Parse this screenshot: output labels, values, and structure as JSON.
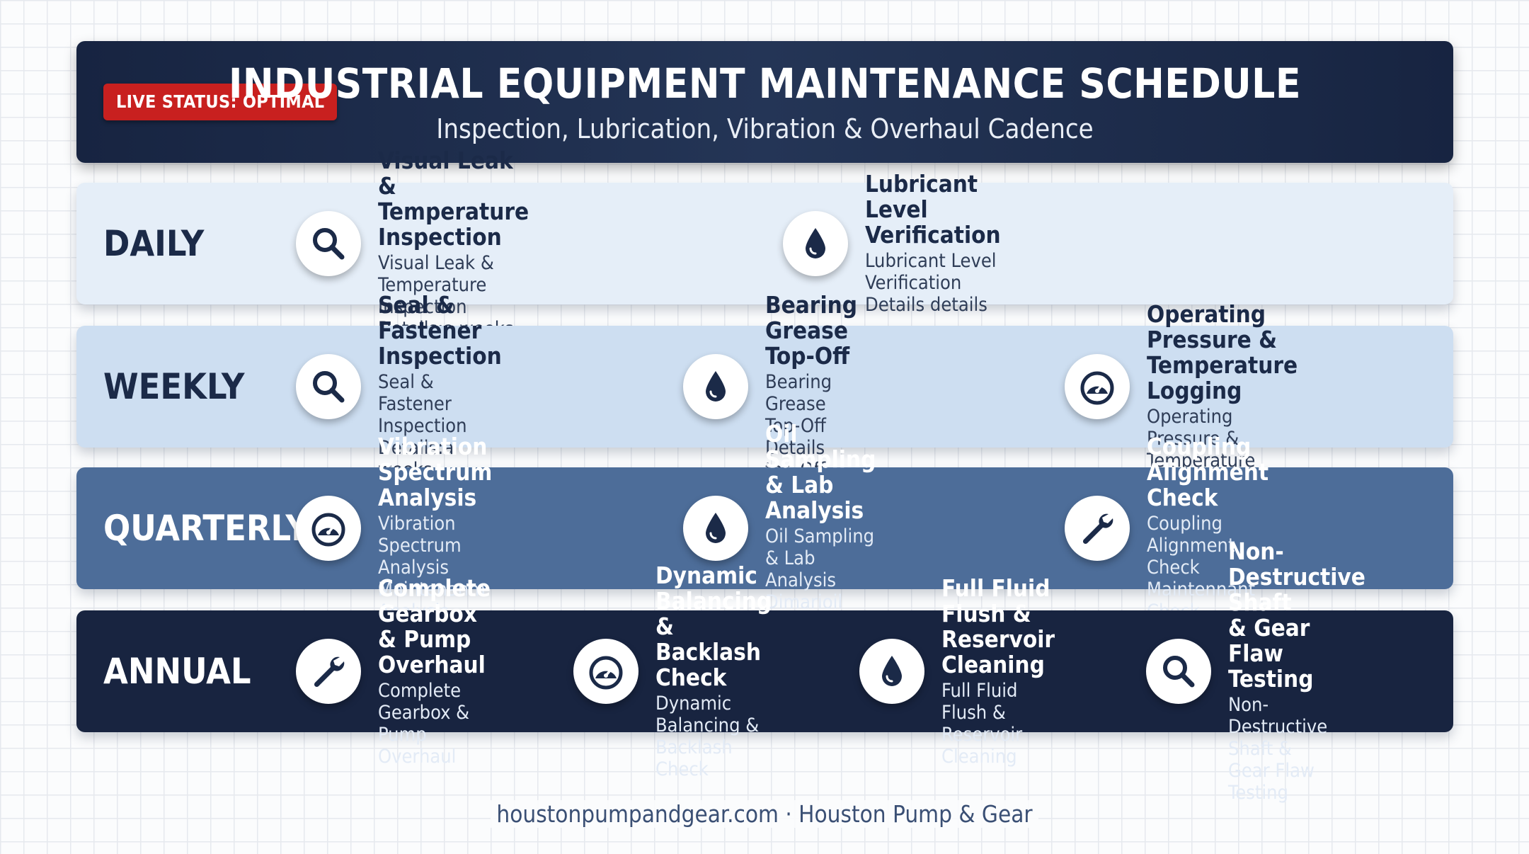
{
  "header": {
    "status_badge": "LIVE STATUS: OPTIMAL",
    "title": "INDUSTRIAL EQUIPMENT MAINTENANCE SCHEDULE",
    "subtitle": "Inspection, Lubrication, Vibration & Overhaul Cadence"
  },
  "schedule": {
    "daily": {
      "label": "DAILY",
      "tasks": [
        {
          "icon": "search-icon",
          "title": "Visual Leak & Temperature Inspection",
          "line1": "Visual Leak & Temperature Inspection",
          "line2": "Details:a weeks"
        },
        {
          "icon": "oil-drop-icon",
          "title": "Lubricant Level Verification",
          "line1": "Lubricant Level Verification",
          "line2": "Details details"
        }
      ]
    },
    "weekly": {
      "label": "WEEKLY",
      "tasks": [
        {
          "icon": "search-icon",
          "title": "Seal & Fastener Inspection",
          "line1": "Seal & Fastener Inspection",
          "line2": "Details:a weeks"
        },
        {
          "icon": "oil-drop-icon",
          "title": "Bearing Grease Top-Off",
          "line1": "Bearing Grease Top-Off",
          "line2": "Details top-Off"
        },
        {
          "icon": "gauge-icon",
          "title_l1": "Operating Pressure &",
          "title_l2": "Temperature Logging",
          "line1": "Operating Pressure & Temperature"
        }
      ]
    },
    "quarterly": {
      "label": "QUARTERLY",
      "tasks": [
        {
          "icon": "gauge-icon",
          "title": "Vibration Spectrum Analysis",
          "line1": "Vibration Spectrum Analysis",
          "line2": "Maintenanm Analysis"
        },
        {
          "icon": "oil-drop-icon",
          "title": "Oil Sampling & Lab Analysis",
          "line1": "Oil Sampling & Lab Analysis",
          "line2": "Dimarioil Analysis"
        },
        {
          "icon": "wrench-icon",
          "title": "Coupling Alignment Check",
          "line1": "Coupling Alignment Check",
          "line2": "Maintennant Check"
        }
      ]
    },
    "annual": {
      "label": "ANNUAL",
      "tasks": [
        {
          "icon": "wrench-icon",
          "title_l1": "Complete Gearbox",
          "title_l2": "& Pump Overhaul",
          "line1": "Complete Gearbox &",
          "line2": "Pump Overhaul"
        },
        {
          "icon": "gauge-icon",
          "title_l1": "Dynamic Balancing",
          "title_l2": "& Backlash Check",
          "line1": "Dynamic Balancing &",
          "line2": "Backlash Check"
        },
        {
          "icon": "oil-drop-icon",
          "title_l1": "Full Fluid Flush &",
          "title_l2": "Reservoir Cleaning",
          "line1": "Full Fluid Flush &",
          "line2": "Reservoir Cleaning"
        },
        {
          "icon": "search-icon",
          "title_l1": "Non-Destructive Shaft",
          "title_l2": "& Gear Flaw Testing",
          "line1": "Non-Destructive Shaft &",
          "line2": "Gear Flaw Testing"
        }
      ]
    }
  },
  "footer": {
    "text": "houstonpumpandgear.com · Houston Pump & Gear"
  },
  "colors": {
    "status_red": "#c8201f",
    "navy": "#182440",
    "quarterly_blue": "#4d6d99",
    "weekly_blue": "#cddef1",
    "daily_blue": "#e5eef8"
  }
}
